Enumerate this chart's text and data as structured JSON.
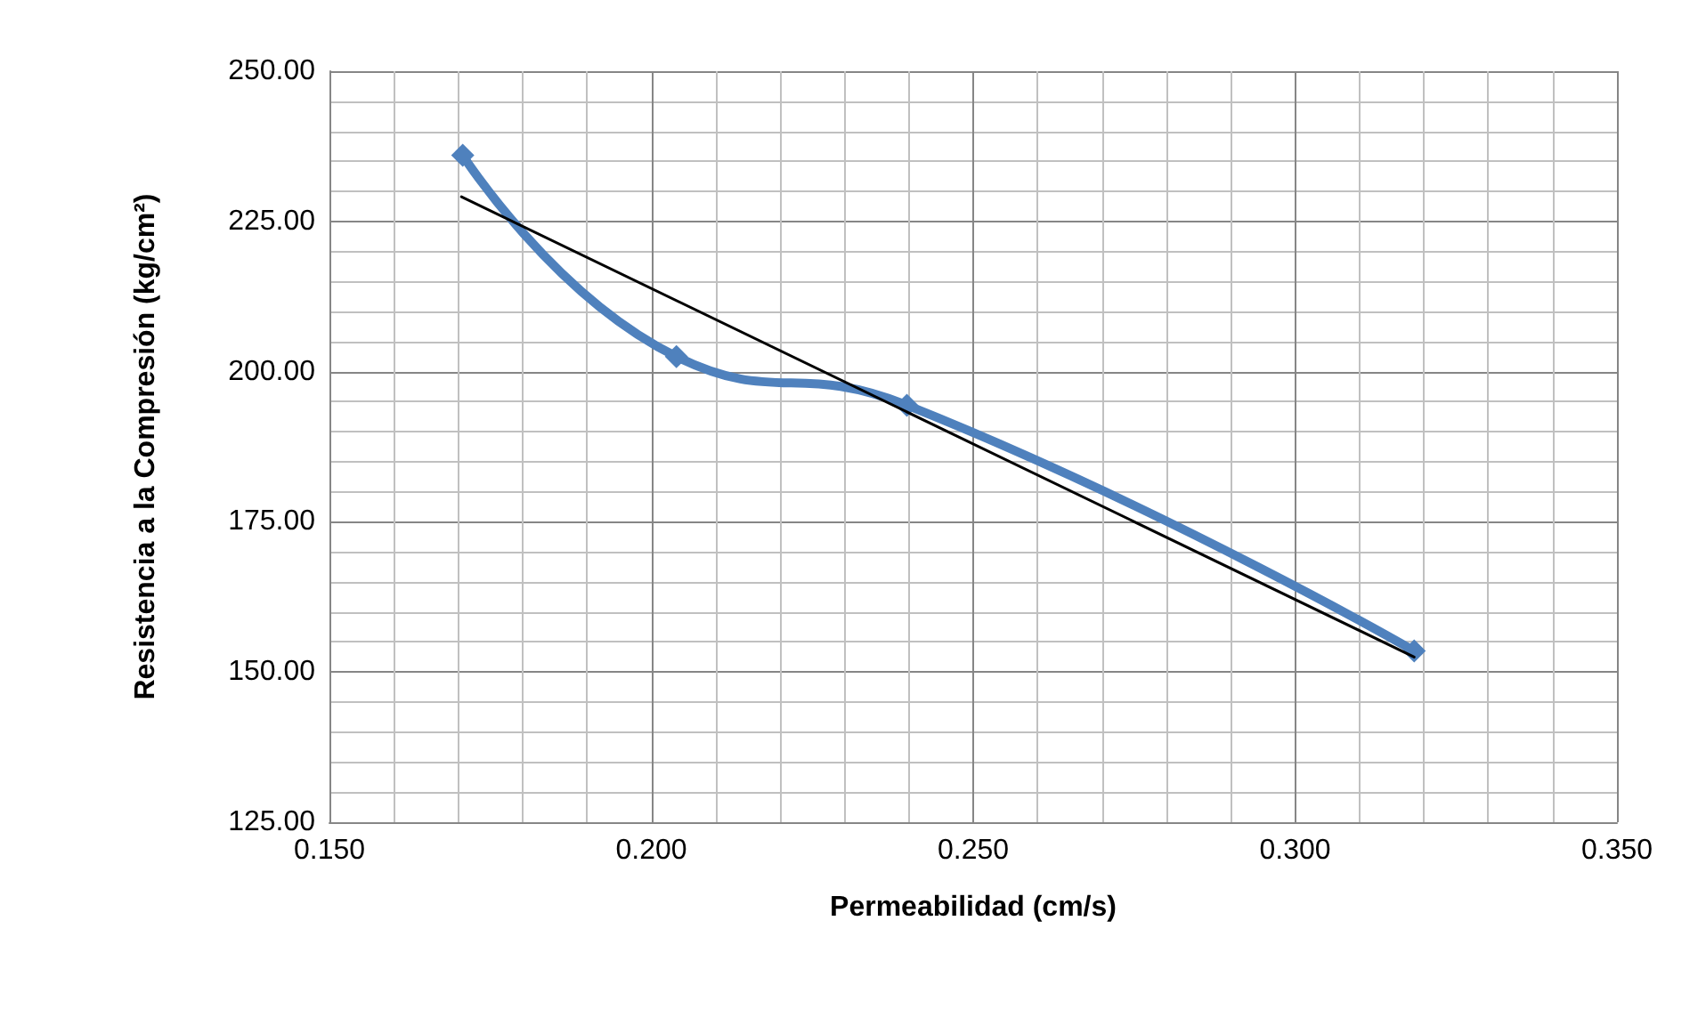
{
  "chart_data": {
    "type": "line",
    "xlabel": "Permeabilidad (cm/s)",
    "ylabel": "Resistencia a la Compresión (kg/cm²)",
    "xlim": [
      0.15,
      0.35
    ],
    "xticks": [
      {
        "value": 0.15,
        "label": "0.150"
      },
      {
        "value": 0.2,
        "label": "0.200"
      },
      {
        "value": 0.25,
        "label": "0.250"
      },
      {
        "value": 0.3,
        "label": "0.300"
      },
      {
        "value": 0.35,
        "label": "0.350"
      }
    ],
    "ylim": [
      125,
      250
    ],
    "yticks": [
      {
        "value": 125,
        "label": "125.00"
      },
      {
        "value": 150,
        "label": "150.00"
      },
      {
        "value": 175,
        "label": "175.00"
      },
      {
        "value": 200,
        "label": "200.00"
      },
      {
        "value": 225,
        "label": "225.00"
      },
      {
        "value": 250,
        "label": "250.00"
      }
    ],
    "grid": true,
    "series": [
      {
        "color": "#4f81bd",
        "x": [
          0.1707,
          0.2039,
          0.2397,
          0.3185
        ],
        "values": [
          236.0,
          202.5,
          194.4,
          153.5
        ],
        "marker": "diamond",
        "line_style": "solid"
      },
      {
        "color": "#000000",
        "x": [
          0.1705,
          0.3185
        ],
        "values": [
          229.1,
          152.5
        ],
        "marker": "none",
        "line_style": "solid"
      }
    ]
  }
}
